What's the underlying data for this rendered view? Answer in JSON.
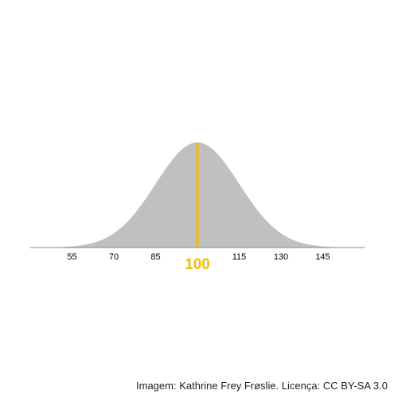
{
  "chart_data": {
    "type": "area",
    "distribution": "normal",
    "mean": 100,
    "sd": 15,
    "xlim": [
      40,
      160
    ],
    "x_ticks": [
      55,
      70,
      85,
      115,
      130,
      145
    ],
    "mean_label": "100",
    "grid": false,
    "legend": "none",
    "title": "",
    "xlabel": "",
    "ylabel": ""
  },
  "colors": {
    "curve_fill": "#c0c0c0",
    "axis": "#8a8a8a",
    "mean_line": "#f5bb00",
    "tick_text": "#000000"
  },
  "credit": "Imagem: Kathrine Frey Frøslie. Licença: CC BY-SA 3.0"
}
